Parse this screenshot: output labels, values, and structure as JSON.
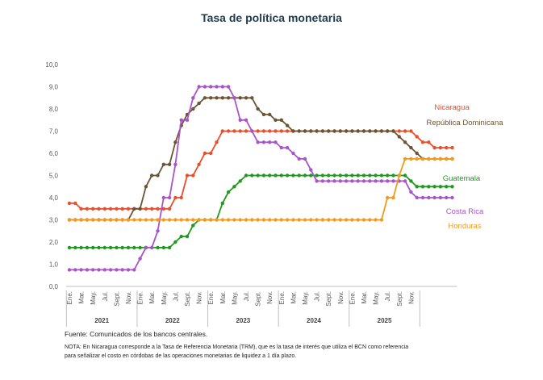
{
  "chart_data": {
    "type": "line",
    "title": "Tasa de política monetaria",
    "ylim": [
      0,
      10
    ],
    "yticks": [
      "0,0",
      "1,0",
      "2,0",
      "3,0",
      "4,0",
      "5,0",
      "6,0",
      "7,0",
      "8,0",
      "9,0",
      "10,0"
    ],
    "month_labels": [
      "Ene.",
      "Mar.",
      "May.",
      "Jul.",
      "Sept.",
      "Nov."
    ],
    "years": [
      "2021",
      "2022",
      "2023",
      "2024",
      "2025"
    ],
    "grid": false,
    "legend": "inline-right",
    "series": [
      {
        "name": "Nicaragua",
        "color": "#E8502A",
        "values": [
          3.75,
          3.75,
          3.5,
          3.5,
          3.5,
          3.5,
          3.5,
          3.5,
          3.5,
          3.5,
          3.5,
          3.5,
          3.5,
          3.5,
          3.5,
          3.5,
          3.5,
          3.5,
          4.0,
          4.0,
          5.0,
          5.0,
          5.5,
          6.0,
          6.0,
          6.5,
          7.0,
          7.0,
          7.0,
          7.0,
          7.0,
          7.0,
          7.0,
          7.0,
          7.0,
          7.0,
          7.0,
          7.0,
          7.0,
          7.0,
          7.0,
          7.0,
          7.0,
          7.0,
          7.0,
          7.0,
          7.0,
          7.0,
          7.0,
          7.0,
          7.0,
          7.0,
          7.0,
          7.0,
          7.0,
          7.0,
          7.0,
          7.0,
          7.0,
          6.75,
          6.5,
          6.5,
          6.25,
          6.25,
          6.25,
          6.25
        ]
      },
      {
        "name": "República Dominicana",
        "color": "#6B5433",
        "values": [
          3.0,
          3.0,
          3.0,
          3.0,
          3.0,
          3.0,
          3.0,
          3.0,
          3.0,
          3.0,
          3.0,
          3.5,
          3.5,
          4.5,
          5.0,
          5.0,
          5.5,
          5.5,
          6.5,
          7.25,
          7.75,
          8.0,
          8.25,
          8.5,
          8.5,
          8.5,
          8.5,
          8.5,
          8.5,
          8.5,
          8.5,
          8.5,
          8.0,
          7.75,
          7.75,
          7.5,
          7.5,
          7.25,
          7.0,
          7.0,
          7.0,
          7.0,
          7.0,
          7.0,
          7.0,
          7.0,
          7.0,
          7.0,
          7.0,
          7.0,
          7.0,
          7.0,
          7.0,
          7.0,
          7.0,
          7.0,
          6.75,
          6.5,
          6.25,
          6.0,
          5.75,
          5.75,
          5.75,
          5.75,
          5.75,
          5.75
        ]
      },
      {
        "name": "Guatemala",
        "color": "#1E9A1E",
        "values": [
          1.75,
          1.75,
          1.75,
          1.75,
          1.75,
          1.75,
          1.75,
          1.75,
          1.75,
          1.75,
          1.75,
          1.75,
          1.75,
          1.75,
          1.75,
          1.75,
          1.75,
          1.75,
          2.0,
          2.25,
          2.25,
          2.75,
          3.0,
          3.0,
          3.0,
          3.0,
          3.75,
          4.25,
          4.5,
          4.75,
          5.0,
          5.0,
          5.0,
          5.0,
          5.0,
          5.0,
          5.0,
          5.0,
          5.0,
          5.0,
          5.0,
          5.0,
          5.0,
          5.0,
          5.0,
          5.0,
          5.0,
          5.0,
          5.0,
          5.0,
          5.0,
          5.0,
          5.0,
          5.0,
          5.0,
          5.0,
          5.0,
          5.0,
          4.75,
          4.5,
          4.5,
          4.5,
          4.5,
          4.5,
          4.5,
          4.5
        ]
      },
      {
        "name": "Costa Rica",
        "color": "#A855C8",
        "values": [
          0.75,
          0.75,
          0.75,
          0.75,
          0.75,
          0.75,
          0.75,
          0.75,
          0.75,
          0.75,
          0.75,
          0.75,
          1.25,
          1.75,
          1.75,
          2.5,
          4.0,
          4.0,
          5.5,
          7.5,
          7.5,
          8.5,
          9.0,
          9.0,
          9.0,
          9.0,
          9.0,
          9.0,
          8.5,
          7.5,
          7.5,
          7.0,
          6.5,
          6.5,
          6.5,
          6.5,
          6.25,
          6.25,
          6.0,
          5.75,
          5.75,
          5.25,
          4.75,
          4.75,
          4.75,
          4.75,
          4.75,
          4.75,
          4.75,
          4.75,
          4.75,
          4.75,
          4.75,
          4.75,
          4.75,
          4.75,
          4.75,
          4.75,
          4.25,
          4.0,
          4.0,
          4.0,
          4.0,
          4.0,
          4.0,
          4.0
        ]
      },
      {
        "name": "Honduras",
        "color": "#F39A1E",
        "values": [
          3.0,
          3.0,
          3.0,
          3.0,
          3.0,
          3.0,
          3.0,
          3.0,
          3.0,
          3.0,
          3.0,
          3.0,
          3.0,
          3.0,
          3.0,
          3.0,
          3.0,
          3.0,
          3.0,
          3.0,
          3.0,
          3.0,
          3.0,
          3.0,
          3.0,
          3.0,
          3.0,
          3.0,
          3.0,
          3.0,
          3.0,
          3.0,
          3.0,
          3.0,
          3.0,
          3.0,
          3.0,
          3.0,
          3.0,
          3.0,
          3.0,
          3.0,
          3.0,
          3.0,
          3.0,
          3.0,
          3.0,
          3.0,
          3.0,
          3.0,
          3.0,
          3.0,
          3.0,
          3.0,
          4.0,
          4.0,
          5.0,
          5.75,
          5.75,
          5.75,
          5.75,
          5.75,
          5.75,
          5.75,
          5.75,
          5.75
        ]
      }
    ]
  },
  "footnotes": {
    "source": "Fuente: Comunicados de los bancos centrales.",
    "note": "NOTA: En Nicaragua corresponde a la Tasa de Referencia Monetaria (TRM), que es la tasa de interés que utiliza el BCN como referencia para señalizar el costo en córdobas de las operaciones monetarias de liquidez a 1 día plazo."
  }
}
